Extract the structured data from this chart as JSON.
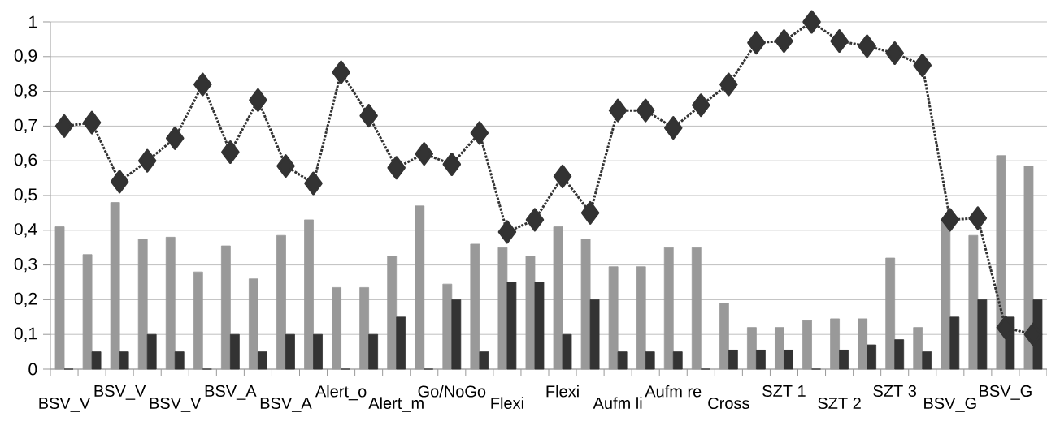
{
  "chart_data": {
    "type": "bar",
    "categories": [
      "BSV_V",
      null,
      "BSV_V",
      null,
      "BSV_V",
      null,
      "BSV_A",
      null,
      "BSV_A",
      null,
      "Alert_o",
      null,
      "Alert_m",
      null,
      "Go/NoGo",
      null,
      "Flexi",
      null,
      "Flexi",
      null,
      "Aufm li",
      null,
      "Aufm re",
      null,
      "Cross",
      null,
      "SZT 1",
      null,
      "SZT 2",
      null,
      "SZT 3",
      null,
      "BSV_G",
      null,
      "BSV_G",
      null
    ],
    "series": [
      {
        "color": "#999999",
        "values": [
          0.41,
          0.33,
          0.48,
          0.375,
          0.38,
          0.28,
          0.355,
          0.26,
          0.385,
          0.43,
          0.235,
          0.235,
          0.325,
          0.47,
          0.245,
          0.36,
          0.35,
          0.325,
          0.41,
          0.375,
          0.295,
          0.295,
          0.35,
          0.35,
          0.19,
          0.12,
          0.12,
          0.14,
          0.145,
          0.145,
          0.32,
          0.12,
          0.43,
          0.385,
          0.615,
          0.585
        ]
      },
      {
        "color": "#333333",
        "values": [
          0,
          0.05,
          0.05,
          0.1,
          0.05,
          0,
          0.1,
          0.05,
          0.1,
          0.1,
          0,
          0.1,
          0.15,
          0,
          0.2,
          0.05,
          0.25,
          0.25,
          0.1,
          0.2,
          0.05,
          0.05,
          0.05,
          0,
          0.055,
          0.055,
          0.055,
          0,
          0.055,
          0.07,
          0.085,
          0.05,
          0.15,
          0.2,
          0.15,
          0.2
        ]
      },
      {
        "type": "line",
        "color": "#333333",
        "marker": "diamond",
        "line_style": "dotted",
        "values": [
          0.7,
          0.71,
          0.54,
          0.6,
          0.665,
          0.82,
          0.625,
          0.775,
          0.585,
          0.535,
          0.855,
          0.73,
          0.58,
          0.62,
          0.59,
          0.68,
          0.395,
          0.43,
          0.555,
          0.45,
          0.745,
          0.745,
          0.695,
          0.76,
          0.82,
          0.94,
          0.945,
          1.0,
          0.945,
          0.93,
          0.91,
          0.875,
          0.43,
          0.435,
          0.12,
          0.1
        ]
      }
    ],
    "ylim": [
      0,
      1
    ],
    "yticks": [
      0,
      {
        "value": 0.1,
        "label": "0,1"
      },
      {
        "value": 0.2,
        "label": "0,2"
      },
      {
        "value": 0.3,
        "label": "0,3"
      },
      {
        "value": 0.4,
        "label": "0,4"
      },
      {
        "value": 0.5,
        "label": "0,5"
      },
      {
        "value": 0.6,
        "label": "0,6"
      },
      {
        "value": 0.7,
        "label": "0,7"
      },
      {
        "value": 0.8,
        "label": "0,8"
      },
      {
        "value": 0.9,
        "label": "0,9"
      },
      1
    ],
    "grid": "y"
  }
}
